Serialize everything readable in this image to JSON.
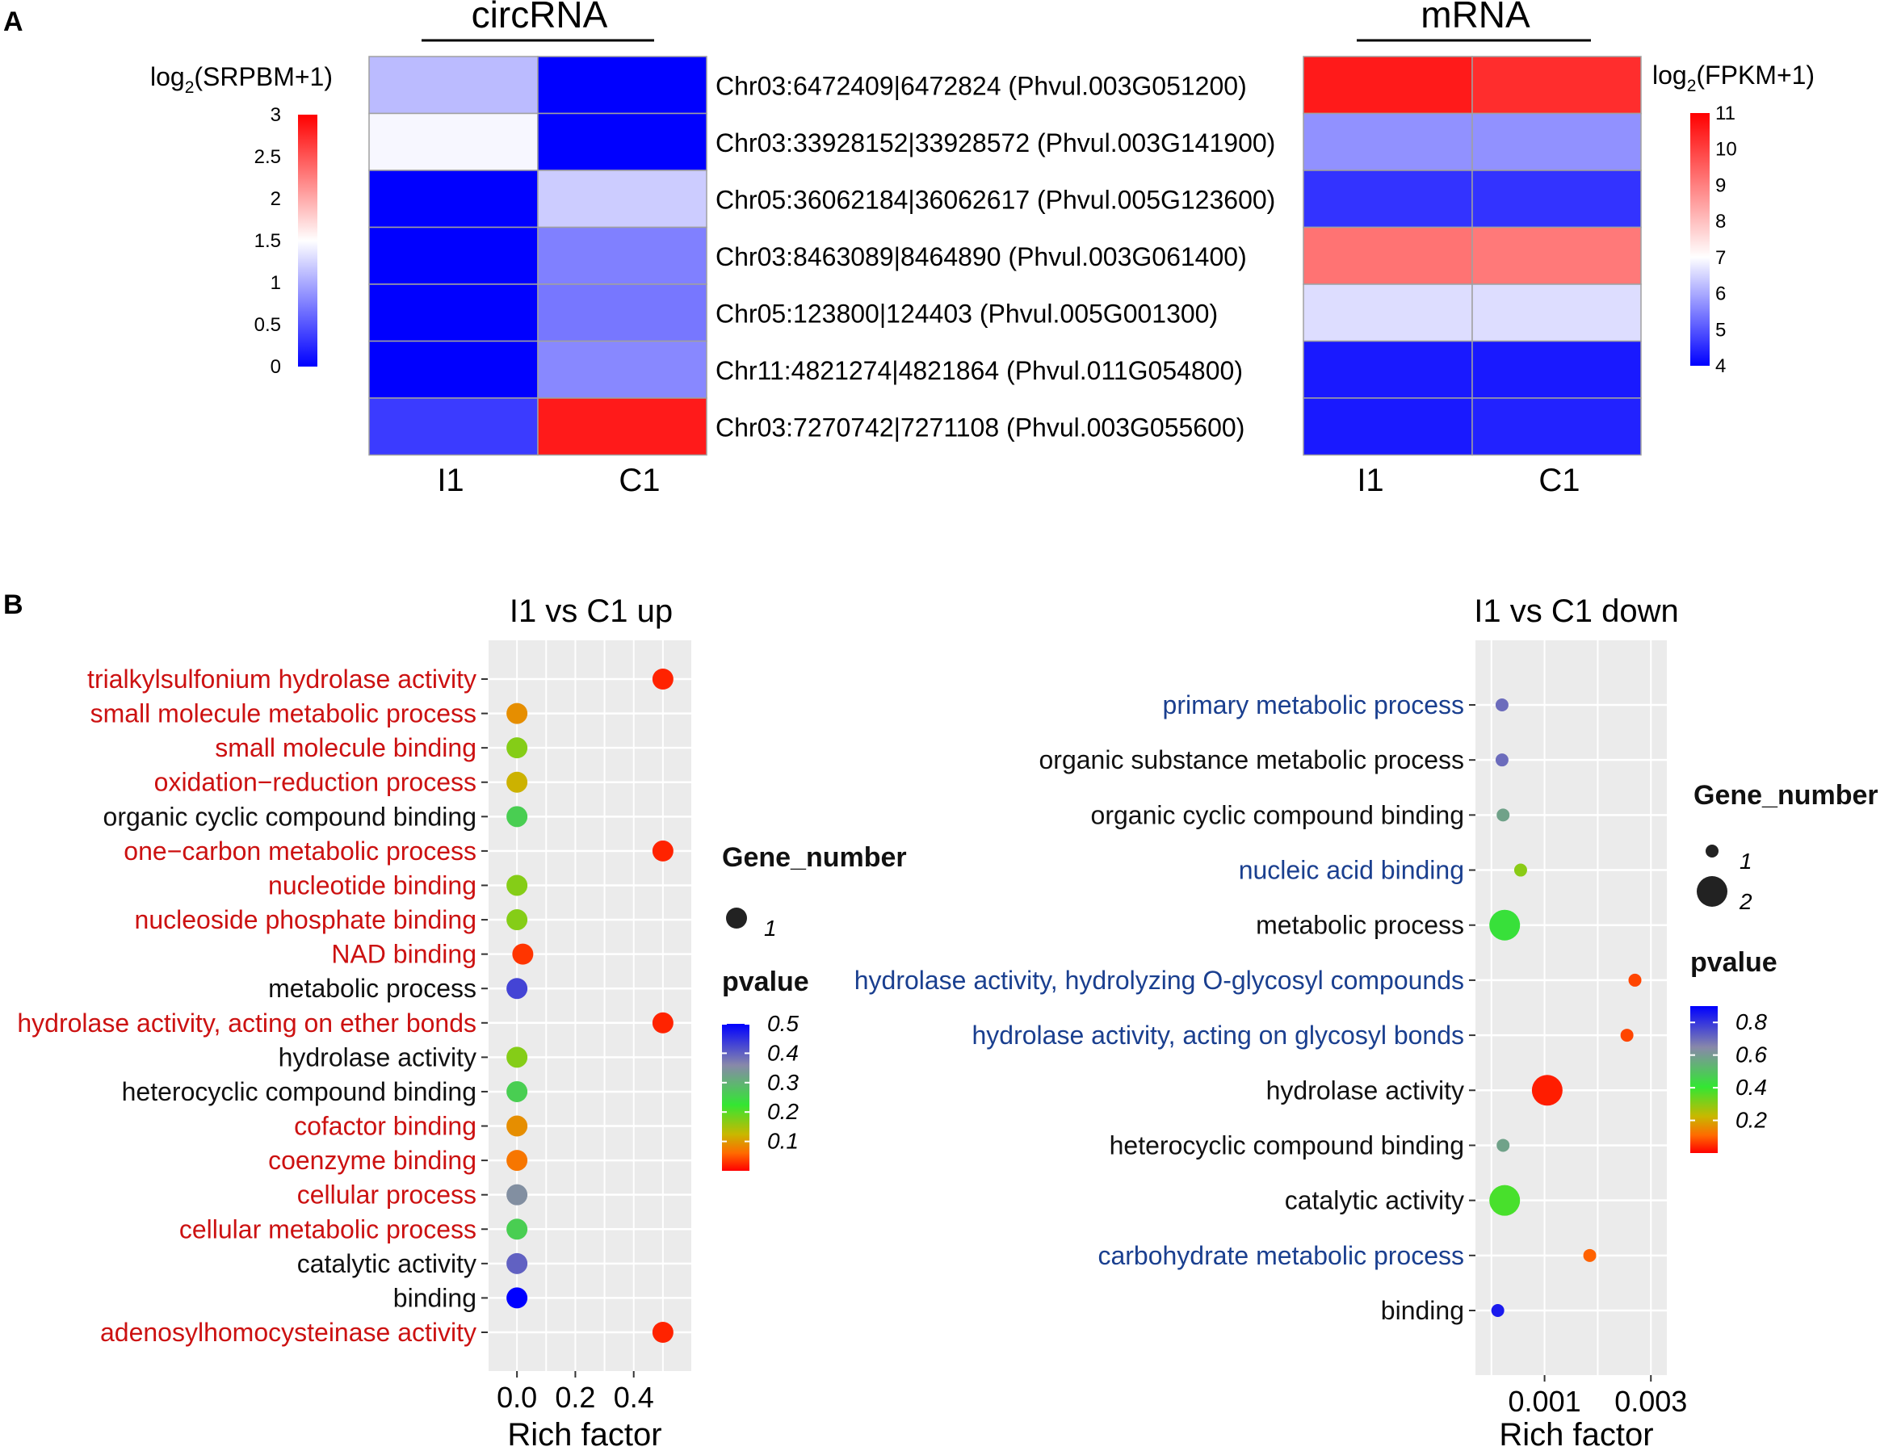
{
  "panel_labels": {
    "a": "A",
    "b": "B"
  },
  "chart_data": [
    {
      "type": "heatmap",
      "id": "circ",
      "title": "circRNA",
      "columns": [
        "I1",
        "C1"
      ],
      "legend": {
        "prefix": "log",
        "sub": "2",
        "suffix": "(SRPBM+1)",
        "min": 0,
        "max": 3,
        "ticks": [
          3,
          2.5,
          2,
          1.5,
          1,
          0.5,
          0
        ],
        "low": "#0000ff",
        "mid": "#ffffff",
        "high": "#ff0000"
      },
      "rows": [
        "Chr03:6472409|6472824 (Phvul.003G051200)",
        "Chr03:33928152|33928572 (Phvul.003G141900)",
        "Chr05:36062184|36062617 (Phvul.005G123600)",
        "Chr03:8463089|8464890 (Phvul.003G061400)",
        "Chr05:123800|124403 (Phvul.005G001300)",
        "Chr11:4821274|4821864 (Phvul.011G054800)",
        "Chr03:7270742|7271108 (Phvul.003G055600)"
      ],
      "values": [
        [
          1.1,
          0.0
        ],
        [
          1.45,
          0.0
        ],
        [
          0.0,
          1.2
        ],
        [
          0.0,
          0.75
        ],
        [
          0.0,
          0.7
        ],
        [
          0.0,
          0.8
        ],
        [
          0.35,
          2.85
        ]
      ]
    },
    {
      "type": "heatmap",
      "id": "mrna",
      "title": "mRNA",
      "columns": [
        "I1",
        "C1"
      ],
      "legend": {
        "prefix": "log",
        "sub": "2",
        "suffix": "(FPKM+1)",
        "min": 4,
        "max": 11,
        "ticks": [
          11,
          10,
          9,
          8,
          7,
          6,
          5,
          4
        ],
        "low": "#0000ff",
        "mid": "#ffffff",
        "high": "#ff0000"
      },
      "values": [
        [
          10.6,
          10.3
        ],
        [
          5.7,
          5.7
        ],
        [
          4.6,
          4.6
        ],
        [
          9.2,
          9.1
        ],
        [
          6.6,
          6.6
        ],
        [
          4.3,
          4.3
        ],
        [
          4.3,
          4.4
        ]
      ]
    },
    {
      "type": "scatter",
      "id": "up",
      "title": "I1 vs C1 up",
      "xlabel": "Rich factor",
      "xlim": [
        -0.1,
        0.6
      ],
      "xticks": [
        0.0,
        0.2,
        0.4
      ],
      "xtick_labels": [
        "0.0",
        "0.2",
        "0.4"
      ],
      "categories": [
        {
          "label": "trialkylsulfonium hydrolase activity",
          "color": "#cc1111"
        },
        {
          "label": "small molecule metabolic process",
          "color": "#cc1111"
        },
        {
          "label": "small molecule binding",
          "color": "#cc1111"
        },
        {
          "label": "oxidation−reduction process",
          "color": "#cc1111"
        },
        {
          "label": "organic cyclic compound binding",
          "color": "#111111"
        },
        {
          "label": "one−carbon metabolic process",
          "color": "#cc1111"
        },
        {
          "label": "nucleotide binding",
          "color": "#cc1111"
        },
        {
          "label": "nucleoside phosphate binding",
          "color": "#cc1111"
        },
        {
          "label": "NAD binding",
          "color": "#cc1111"
        },
        {
          "label": "metabolic process",
          "color": "#111111"
        },
        {
          "label": "hydrolase activity, acting on ether bonds",
          "color": "#cc1111"
        },
        {
          "label": "hydrolase activity",
          "color": "#111111"
        },
        {
          "label": "heterocyclic compound binding",
          "color": "#111111"
        },
        {
          "label": "cofactor binding",
          "color": "#cc1111"
        },
        {
          "label": "coenzyme binding",
          "color": "#cc1111"
        },
        {
          "label": "cellular process",
          "color": "#cc1111"
        },
        {
          "label": "cellular metabolic process",
          "color": "#cc1111"
        },
        {
          "label": "catalytic activity",
          "color": "#111111"
        },
        {
          "label": "binding",
          "color": "#111111"
        },
        {
          "label": "adenosylhomocysteinase activity",
          "color": "#cc1111"
        }
      ],
      "x": [
        0.5,
        0.0,
        0.0,
        0.0,
        0.0,
        0.5,
        0.0,
        0.0,
        0.02,
        0.0,
        0.5,
        0.0,
        0.0,
        0.0,
        0.0,
        0.0,
        0.0,
        0.0,
        0.0,
        0.5
      ],
      "gene_number": [
        1,
        1,
        1,
        1,
        1,
        1,
        1,
        1,
        1,
        1,
        1,
        1,
        1,
        1,
        1,
        1,
        1,
        1,
        1,
        1
      ],
      "pvalue": [
        0.02,
        0.09,
        0.17,
        0.12,
        0.26,
        0.02,
        0.17,
        0.17,
        0.03,
        0.43,
        0.02,
        0.17,
        0.26,
        0.09,
        0.07,
        0.35,
        0.26,
        0.4,
        0.5,
        0.02
      ],
      "size_legend": {
        "title": "Gene_number",
        "values": [
          1
        ],
        "labels": [
          "1"
        ]
      },
      "color_legend": {
        "title": "pvalue",
        "min": 0.0,
        "max": 0.5,
        "ticks": [
          0.5,
          0.4,
          0.3,
          0.2,
          0.1
        ],
        "tick_labels": [
          "0.5",
          "0.4",
          "0.3",
          "0.2",
          "0.1"
        ]
      }
    },
    {
      "type": "scatter",
      "id": "down",
      "title": "I1 vs C1 down",
      "xlabel": "Rich factor",
      "xlim": [
        -0.0003,
        0.0033
      ],
      "xticks": [
        0.001,
        0.003
      ],
      "xtick_labels": [
        "0.001",
        "0.003"
      ],
      "categories": [
        {
          "label": "primary metabolic process",
          "color": "#1a3f8f"
        },
        {
          "label": "organic substance metabolic process",
          "color": "#111111"
        },
        {
          "label": "organic cyclic compound binding",
          "color": "#111111"
        },
        {
          "label": "nucleic acid binding",
          "color": "#1a3f8f"
        },
        {
          "label": "metabolic process",
          "color": "#111111"
        },
        {
          "label": "hydrolase activity, hydrolyzing O-glycosyl compounds",
          "color": "#1a3f8f"
        },
        {
          "label": "hydrolase activity, acting on glycosyl bonds",
          "color": "#1a3f8f"
        },
        {
          "label": "hydrolase activity",
          "color": "#111111"
        },
        {
          "label": "heterocyclic compound binding",
          "color": "#111111"
        },
        {
          "label": "catalytic activity",
          "color": "#111111"
        },
        {
          "label": "carbohydrate metabolic process",
          "color": "#1a3f8f"
        },
        {
          "label": "binding",
          "color": "#111111"
        }
      ],
      "x": [
        0.0002,
        0.0002,
        0.00022,
        0.00055,
        0.00025,
        0.0027,
        0.00255,
        0.00105,
        0.00022,
        0.00025,
        0.00185,
        0.00012
      ],
      "gene_number": [
        1,
        1,
        1,
        1,
        2,
        1,
        1,
        2,
        1,
        2,
        1,
        1
      ],
      "pvalue": [
        0.7,
        0.7,
        0.58,
        0.3,
        0.42,
        0.07,
        0.07,
        0.03,
        0.58,
        0.38,
        0.1,
        0.85
      ],
      "size_legend": {
        "title": "Gene_number",
        "values": [
          1,
          2
        ],
        "labels": [
          "1",
          "2"
        ]
      },
      "color_legend": {
        "title": "pvalue",
        "min": 0.0,
        "max": 0.9,
        "ticks": [
          0.8,
          0.6,
          0.4,
          0.2
        ],
        "tick_labels": [
          "0.8",
          "0.6",
          "0.4",
          "0.2"
        ]
      }
    }
  ]
}
